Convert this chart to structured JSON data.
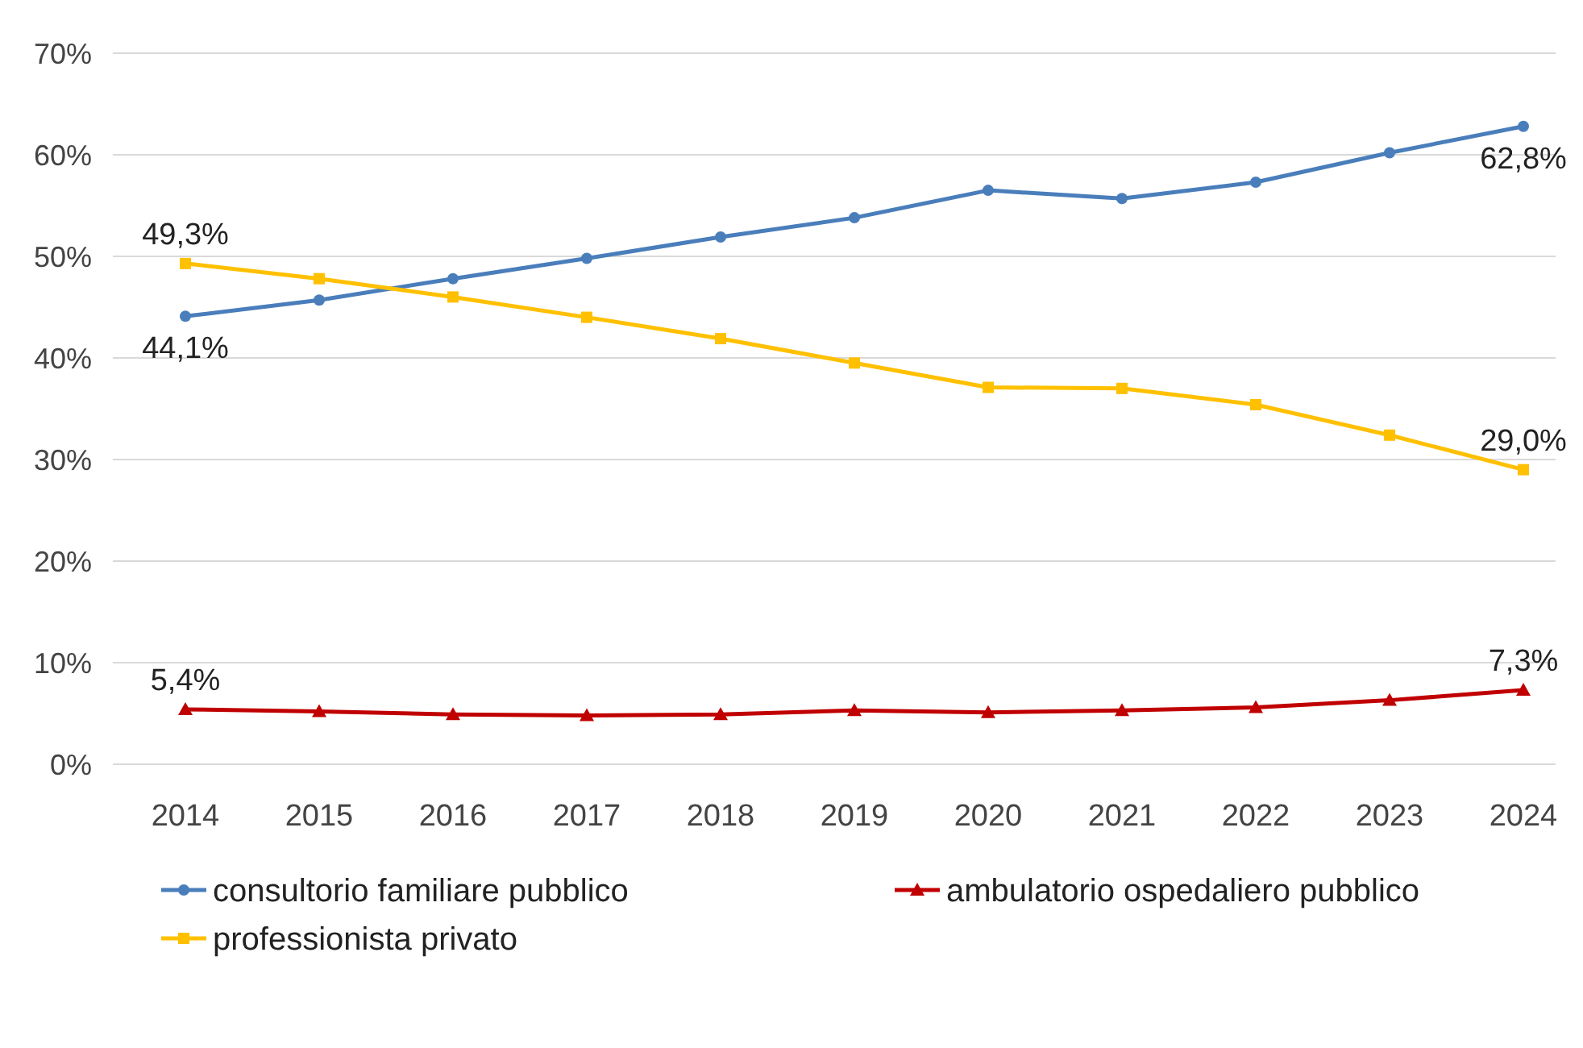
{
  "chart_data": {
    "type": "line",
    "categories": [
      "2014",
      "2015",
      "2016",
      "2017",
      "2018",
      "2019",
      "2020",
      "2021",
      "2022",
      "2023",
      "2024"
    ],
    "series": [
      {
        "name": "consultorio familiare pubblico",
        "color": "#4a7ebb",
        "marker": "circle",
        "values": [
          44.1,
          45.7,
          47.8,
          49.8,
          51.9,
          53.8,
          56.5,
          55.7,
          57.3,
          60.2,
          62.8
        ]
      },
      {
        "name": "ambulatorio ospedaliero pubblico",
        "color": "#c00000",
        "marker": "triangle",
        "values": [
          5.4,
          5.2,
          4.9,
          4.8,
          4.9,
          5.3,
          5.1,
          5.3,
          5.6,
          6.3,
          7.3
        ]
      },
      {
        "name": "professionista privato",
        "color": "#ffc000",
        "marker": "square",
        "values": [
          49.3,
          47.8,
          46.0,
          44.0,
          41.9,
          39.5,
          37.1,
          37.0,
          35.4,
          32.4,
          29.0
        ]
      }
    ],
    "ylim": [
      0,
      70
    ],
    "yticks": [
      {
        "value": 0,
        "label": "0%"
      },
      {
        "value": 10,
        "label": "10%"
      },
      {
        "value": 20,
        "label": "20%"
      },
      {
        "value": 30,
        "label": "30%"
      },
      {
        "value": 40,
        "label": "40%"
      },
      {
        "value": 50,
        "label": "50%"
      },
      {
        "value": 60,
        "label": "60%"
      },
      {
        "value": 70,
        "label": "70%"
      }
    ],
    "grid": "y",
    "legend": "bottom",
    "line_style": "solid",
    "annotations": [
      {
        "text": "49,3%",
        "x": "2014",
        "y": 49.3
      },
      {
        "text": "44,1%",
        "x": "2014",
        "y": 44.1
      },
      {
        "text": "62,8%",
        "x": "2024",
        "y": 62.8
      },
      {
        "text": "29,0%",
        "x": "2024",
        "y": 29.0
      },
      {
        "text": "5,4%",
        "x": "2014",
        "y": 5.4
      },
      {
        "text": "7,3%",
        "x": "2024",
        "y": 7.3
      }
    ]
  }
}
